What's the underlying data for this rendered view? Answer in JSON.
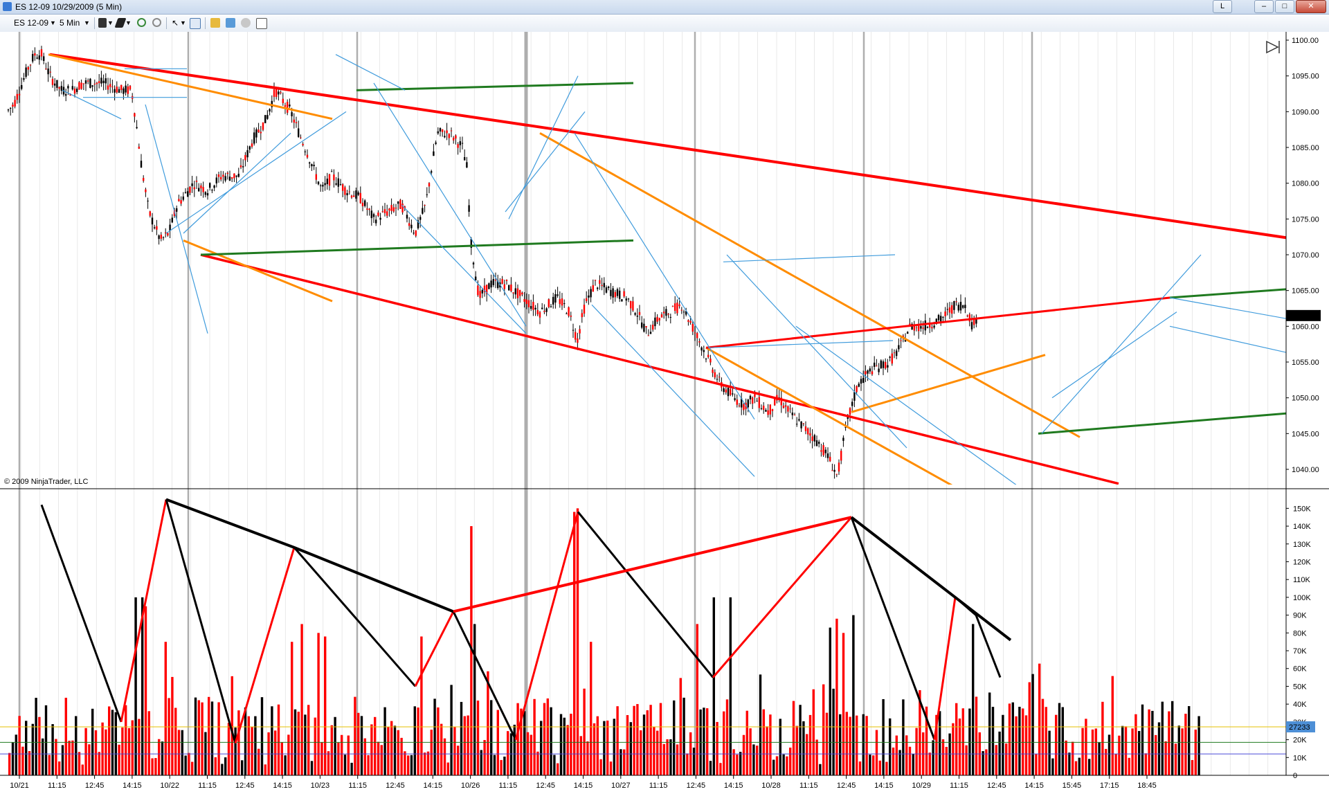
{
  "window": {
    "title": "ES 12-09  10/29/2009 (5 Min)",
    "btn_l": "L",
    "btn_min": "–",
    "btn_max": "□",
    "btn_close": "✕"
  },
  "toolbar": {
    "instrument": "ES 12-09",
    "interval": "5 Min"
  },
  "copyright": "© 2009 NinjaTrader, LLC",
  "colors": {
    "red": "#ff0000",
    "orange": "#ff8c00",
    "green": "#1f7a1f",
    "blue": "#3f9bdc",
    "black": "#000000"
  },
  "chart_data": [
    {
      "type": "candlestick",
      "title": "",
      "instrument": "ES 12-09",
      "period": "5 Min",
      "date": "10/29/2009",
      "ylim": [
        1036,
        1100
      ],
      "y_ticks": [
        "1100.00",
        "1095.00",
        "1090.00",
        "1085.00",
        "1080.00",
        "1075.00",
        "1070.00",
        "1065.00",
        "1060.00",
        "1055.00",
        "1050.00",
        "1045.00",
        "1040.00"
      ],
      "last_price": "1061.50",
      "price_path": [
        [
          0,
          1089
        ],
        [
          20,
          1091
        ],
        [
          40,
          1096
        ],
        [
          50,
          1098
        ],
        [
          60,
          1098
        ],
        [
          72,
          1095
        ],
        [
          88,
          1093
        ],
        [
          104,
          1093
        ],
        [
          120,
          1094
        ],
        [
          150,
          1094
        ],
        [
          175,
          1093
        ],
        [
          190,
          1093
        ],
        [
          196,
          1089
        ],
        [
          205,
          1082
        ],
        [
          215,
          1076
        ],
        [
          232,
          1072
        ],
        [
          244,
          1073
        ],
        [
          256,
          1077
        ],
        [
          280,
          1080
        ],
        [
          300,
          1079
        ],
        [
          320,
          1081
        ],
        [
          345,
          1081
        ],
        [
          365,
          1086
        ],
        [
          385,
          1089
        ],
        [
          398,
          1093
        ],
        [
          420,
          1090
        ],
        [
          432,
          1087
        ],
        [
          445,
          1084
        ],
        [
          465,
          1079
        ],
        [
          480,
          1081
        ],
        [
          500,
          1079
        ],
        [
          520,
          1078
        ],
        [
          540,
          1075
        ],
        [
          560,
          1076
        ],
        [
          580,
          1077
        ],
        [
          600,
          1073
        ],
        [
          615,
          1077
        ],
        [
          625,
          1083
        ],
        [
          632,
          1087
        ],
        [
          650,
          1087
        ],
        [
          668,
          1085
        ],
        [
          675,
          1082
        ],
        [
          680,
          1072
        ],
        [
          692,
          1064
        ],
        [
          710,
          1066
        ],
        [
          730,
          1066
        ],
        [
          755,
          1064
        ],
        [
          780,
          1062
        ],
        [
          805,
          1064
        ],
        [
          822,
          1062
        ],
        [
          834,
          1058
        ],
        [
          845,
          1063
        ],
        [
          860,
          1066
        ],
        [
          880,
          1065
        ],
        [
          905,
          1064
        ],
        [
          920,
          1062
        ],
        [
          935,
          1059
        ],
        [
          950,
          1061
        ],
        [
          968,
          1062
        ],
        [
          985,
          1063
        ],
        [
          1000,
          1060
        ],
        [
          1020,
          1056
        ],
        [
          1040,
          1052
        ],
        [
          1060,
          1050
        ],
        [
          1075,
          1049
        ],
        [
          1090,
          1050
        ],
        [
          1110,
          1048
        ],
        [
          1125,
          1050
        ],
        [
          1140,
          1048
        ],
        [
          1160,
          1046
        ],
        [
          1180,
          1044
        ],
        [
          1195,
          1042
        ],
        [
          1210,
          1039
        ],
        [
          1217,
          1043
        ],
        [
          1225,
          1047
        ],
        [
          1240,
          1052
        ],
        [
          1260,
          1054
        ],
        [
          1285,
          1055
        ],
        [
          1300,
          1057
        ],
        [
          1315,
          1060
        ],
        [
          1335,
          1060
        ],
        [
          1360,
          1061
        ],
        [
          1380,
          1063
        ],
        [
          1395,
          1063
        ],
        [
          1405,
          1060
        ],
        [
          1412,
          1061.5
        ]
      ],
      "separator_labels": [
        "10/21",
        "10/22",
        "10/23",
        "10/26",
        "10/27",
        "10/28",
        "10/29"
      ],
      "x_ticks": [
        "10/21",
        "11:15",
        "12:45",
        "14:15",
        "10/22",
        "11:15",
        "12:45",
        "14:15",
        "10/23",
        "11:15",
        "12:45",
        "14:15",
        "10/26",
        "11:15",
        "12:45",
        "14:15",
        "10/27",
        "11:15",
        "12:45",
        "14:15",
        "10/28",
        "11:15",
        "12:45",
        "14:15",
        "10/29",
        "11:15",
        "12:45",
        "14:15",
        "15:45",
        "17:15",
        "18:45"
      ]
    },
    {
      "type": "bar",
      "title": "",
      "series_name": "Volume",
      "ylim": [
        0,
        160000
      ],
      "y_ticks": [
        "150K",
        "140K",
        "130K",
        "120K",
        "110K",
        "100K",
        "90K",
        "80K",
        "70K",
        "60K",
        "50K",
        "40K",
        "30K",
        "20K",
        "10K",
        "0"
      ],
      "current_value": "27233",
      "reference_line": 27233,
      "zigzag_volume": [
        [
          60,
          152000
        ],
        [
          175,
          30000
        ],
        [
          240,
          155000
        ],
        [
          340,
          18000
        ],
        [
          425,
          128000
        ],
        [
          600,
          50000
        ],
        [
          655,
          92000
        ],
        [
          745,
          20000
        ],
        [
          835,
          148000
        ],
        [
          1030,
          55000
        ],
        [
          1230,
          145000
        ],
        [
          1350,
          20000
        ],
        [
          1380,
          100000
        ],
        [
          1410,
          90000
        ],
        [
          1445,
          55000
        ]
      ],
      "volume_trend_lines": [
        [
          [
            240,
            155000
          ],
          [
            425,
            128000
          ],
          [
            655,
            92000
          ]
        ],
        [
          [
            655,
            92000
          ],
          [
            1230,
            145000
          ]
        ],
        [
          [
            1230,
            145000
          ],
          [
            1460,
            76000
          ]
        ]
      ],
      "volume_spikes": [
        [
          195,
          100000
        ],
        [
          205,
          100000
        ],
        [
          210,
          95000
        ],
        [
          236,
          75000
        ],
        [
          420,
          75000
        ],
        [
          435,
          85000
        ],
        [
          460,
          80000
        ],
        [
          470,
          78000
        ],
        [
          605,
          78000
        ],
        [
          680,
          140000
        ],
        [
          685,
          85000
        ],
        [
          830,
          148000
        ],
        [
          835,
          150000
        ],
        [
          853,
          75000
        ],
        [
          1005,
          85000
        ],
        [
          1030,
          100000
        ],
        [
          1055,
          100000
        ],
        [
          1198,
          83000
        ],
        [
          1205,
          88000
        ],
        [
          1215,
          80000
        ],
        [
          1230,
          90000
        ],
        [
          1405,
          85000
        ]
      ],
      "bars_sampled": 360
    }
  ]
}
